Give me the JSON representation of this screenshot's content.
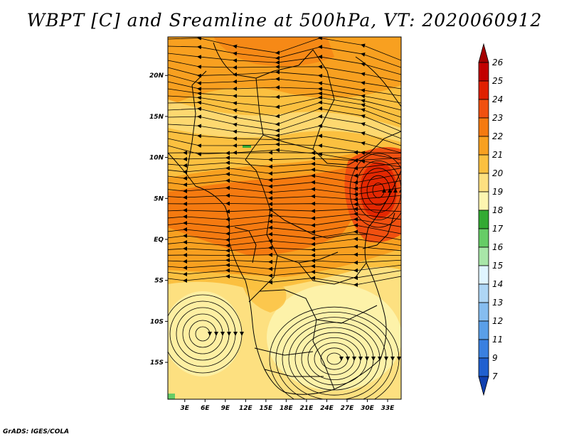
{
  "title": "WBPT [C] and Sreamline at 500hPa, VT: 2020060912",
  "credit": "GrADS: IGES/COLA",
  "map": {
    "lat_labels": [
      "20N",
      "15N",
      "10N",
      "5N",
      "EQ",
      "5S",
      "10S",
      "15S"
    ],
    "lon_labels": [
      "3E",
      "6E",
      "9E",
      "12E",
      "15E",
      "18E",
      "21E",
      "24E",
      "27E",
      "30E",
      "33E"
    ],
    "lat_values": [
      20,
      15,
      10,
      5,
      0,
      -5,
      -10,
      -15
    ],
    "lon_values": [
      3,
      6,
      9,
      12,
      15,
      18,
      21,
      24,
      27,
      30,
      33
    ],
    "lon_range": [
      0.5,
      35
    ],
    "lat_range": [
      -19.5,
      24.7
    ]
  },
  "colorbar": {
    "labels": [
      "26",
      "25",
      "24",
      "23",
      "22",
      "21",
      "20",
      "19",
      "18",
      "17",
      "16",
      "15",
      "14",
      "13",
      "12",
      "11",
      "9",
      "7"
    ],
    "colors": [
      "#a50000",
      "#c20000",
      "#e02000",
      "#f05010",
      "#f57a10",
      "#f8a020",
      "#fbc040",
      "#fde080",
      "#fdf5b0",
      "#33aa33",
      "#66cc66",
      "#a8e6a8",
      "#e0f5ff",
      "#aed6f5",
      "#86bdf0",
      "#5a9fe8",
      "#3a80e0",
      "#2060d0",
      "#1040b0"
    ]
  }
}
